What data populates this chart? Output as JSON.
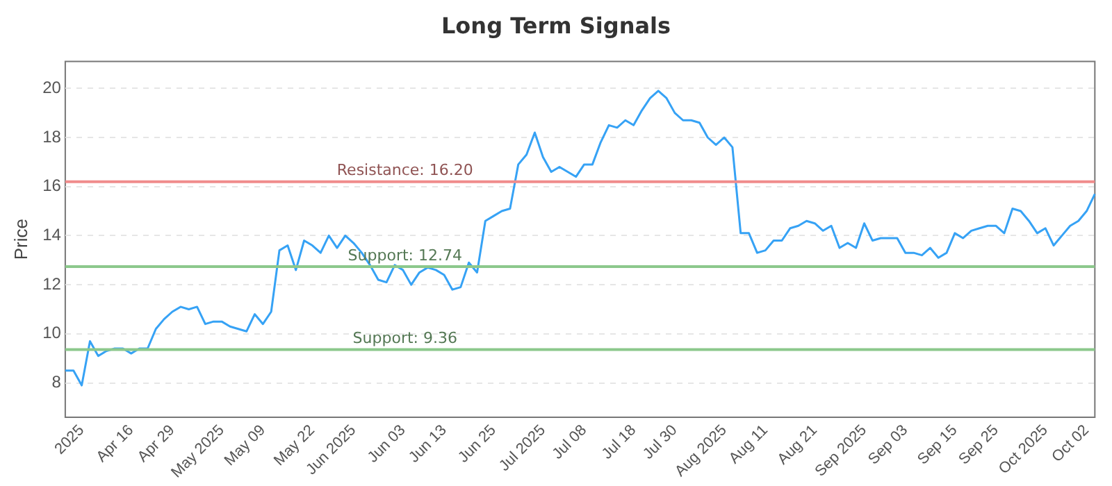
{
  "chart_data": {
    "type": "line",
    "title": "Long Term Signals",
    "ylabel": "Price",
    "categories": [
      null,
      null,
      "2025",
      null,
      null,
      null,
      null,
      null,
      "Apr 16",
      null,
      null,
      null,
      null,
      "Apr 29",
      null,
      null,
      null,
      null,
      null,
      "May 2025",
      null,
      null,
      null,
      null,
      "May 09",
      null,
      null,
      null,
      null,
      null,
      "May 22",
      null,
      null,
      null,
      null,
      "Jun 2025",
      null,
      null,
      null,
      null,
      null,
      "Jun 03",
      null,
      null,
      null,
      null,
      "Jun 13",
      null,
      null,
      null,
      null,
      null,
      "Jun 25",
      null,
      null,
      null,
      null,
      null,
      "Jul 2025",
      null,
      null,
      null,
      null,
      "Jul 08",
      null,
      null,
      null,
      null,
      null,
      "Jul 18",
      null,
      null,
      null,
      null,
      "Jul 30",
      null,
      null,
      null,
      null,
      null,
      "Aug 2025",
      null,
      null,
      null,
      null,
      "Aug 11",
      null,
      null,
      null,
      null,
      null,
      "Aug 21",
      null,
      null,
      null,
      null,
      null,
      "Sep 2025",
      null,
      null,
      null,
      null,
      "Sep 03",
      null,
      null,
      null,
      null,
      null,
      "Sep 15",
      null,
      null,
      null,
      null,
      "Sep 25",
      null,
      null,
      null,
      null,
      null,
      "Oct 2025",
      null,
      null,
      null,
      null,
      "Oct 02",
      null
    ],
    "series": [
      {
        "color": "#36a2f5",
        "values": [
          8.5,
          8.5,
          7.9,
          9.7,
          9.1,
          9.3,
          9.4,
          9.4,
          9.2,
          9.4,
          9.4,
          10.2,
          10.6,
          10.9,
          11.1,
          11.0,
          11.1,
          10.4,
          10.5,
          10.5,
          10.3,
          10.2,
          10.1,
          10.8,
          10.4,
          10.9,
          13.4,
          13.6,
          12.6,
          13.8,
          13.6,
          13.3,
          14.0,
          13.5,
          14.0,
          13.7,
          13.3,
          12.8,
          12.2,
          12.1,
          12.8,
          12.6,
          12.0,
          12.5,
          12.7,
          12.6,
          12.4,
          11.8,
          11.9,
          12.9,
          12.5,
          14.6,
          14.8,
          15.0,
          15.1,
          16.9,
          17.3,
          18.2,
          17.2,
          16.6,
          16.8,
          16.6,
          16.4,
          16.9,
          16.9,
          17.8,
          18.5,
          18.4,
          18.7,
          18.5,
          19.1,
          19.6,
          19.9,
          19.6,
          19.0,
          18.7,
          18.7,
          18.6,
          18.0,
          17.7,
          18.0,
          17.6,
          14.1,
          14.1,
          13.3,
          13.4,
          13.8,
          13.8,
          14.3,
          14.4,
          14.6,
          14.5,
          14.2,
          14.4,
          13.5,
          13.7,
          13.5,
          14.5,
          13.8,
          13.9,
          13.9,
          13.9,
          13.3,
          13.3,
          13.2,
          13.5,
          13.1,
          13.3,
          14.1,
          13.9,
          14.2,
          14.3,
          14.4,
          14.4,
          14.1,
          15.1,
          15.0,
          14.6,
          14.1,
          14.3,
          13.6,
          14.0,
          14.4,
          14.6,
          15.0,
          15.7
        ]
      }
    ],
    "ylim": [
      6.6,
      21.1
    ],
    "yticks": [
      8,
      10,
      12,
      14,
      16,
      18,
      20
    ],
    "grid": "y",
    "legend": false,
    "marker": "none",
    "line_style": "solid",
    "ref_lines": [
      {
        "axis": "y",
        "value": 16.2,
        "label": "Resistance: 16.20",
        "color": "#f08c8c"
      },
      {
        "axis": "y",
        "value": 12.74,
        "label": "Support: 12.74",
        "color": "#8cc88c"
      },
      {
        "axis": "y",
        "value": 9.36,
        "label": "Support: 9.36",
        "color": "#8cc88c"
      }
    ]
  }
}
